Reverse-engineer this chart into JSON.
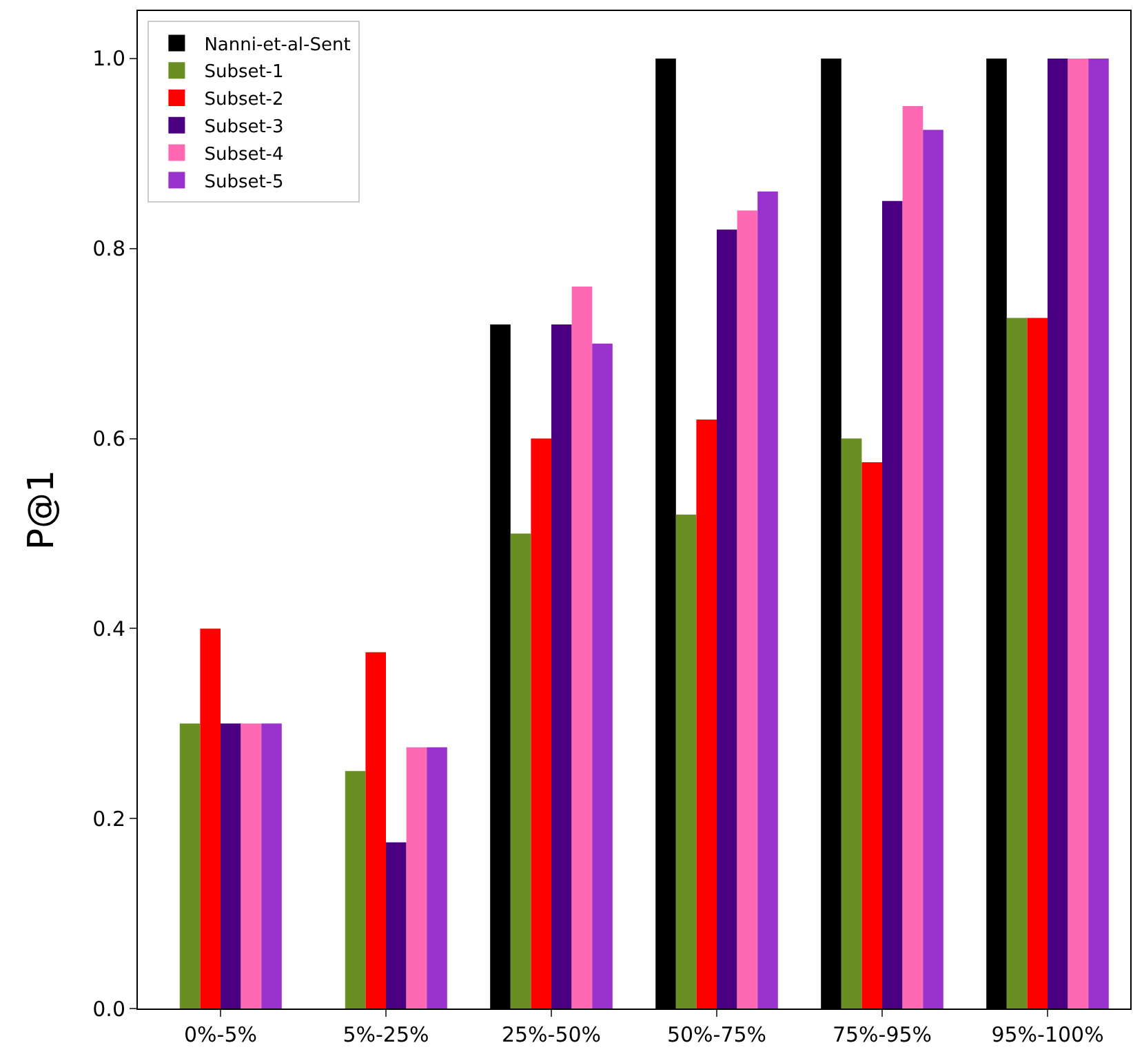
{
  "chart_data": {
    "type": "bar",
    "ylabel": "P@1",
    "categories": [
      "0%-5%",
      "5%-25%",
      "25%-50%",
      "50%-75%",
      "75%-95%",
      "95%-100%"
    ],
    "series": [
      {
        "name": "Nanni-et-al-Sent",
        "color": "#000000",
        "values": [
          0,
          0,
          0.72,
          1.0,
          1.0,
          1.0
        ]
      },
      {
        "name": "Subset-1",
        "color": "#6b8e23",
        "values": [
          0.3,
          0.25,
          0.5,
          0.52,
          0.6,
          0.727
        ]
      },
      {
        "name": "Subset-2",
        "color": "#ff0000",
        "values": [
          0.4,
          0.375,
          0.6,
          0.62,
          0.575,
          0.727
        ]
      },
      {
        "name": "Subset-3",
        "color": "#4b0082",
        "values": [
          0.3,
          0.175,
          0.72,
          0.82,
          0.85,
          1.0
        ]
      },
      {
        "name": "Subset-4",
        "color": "#ff69b4",
        "values": [
          0.3,
          0.275,
          0.76,
          0.84,
          0.95,
          1.0
        ]
      },
      {
        "name": "Subset-5",
        "color": "#9932cc",
        "values": [
          0.3,
          0.275,
          0.7,
          0.86,
          0.925,
          1.0
        ]
      }
    ],
    "ylim": [
      0,
      1.05
    ],
    "yticks": [
      {
        "value": 0,
        "label": "0.0"
      },
      {
        "value": 0.2,
        "label": "0.2"
      },
      {
        "value": 0.4,
        "label": "0.4"
      },
      {
        "value": 0.6,
        "label": "0.6"
      },
      {
        "value": 0.8,
        "label": "0.8"
      },
      {
        "value": 1,
        "label": "1.0"
      }
    ],
    "grid": false,
    "legend": "top left"
  }
}
